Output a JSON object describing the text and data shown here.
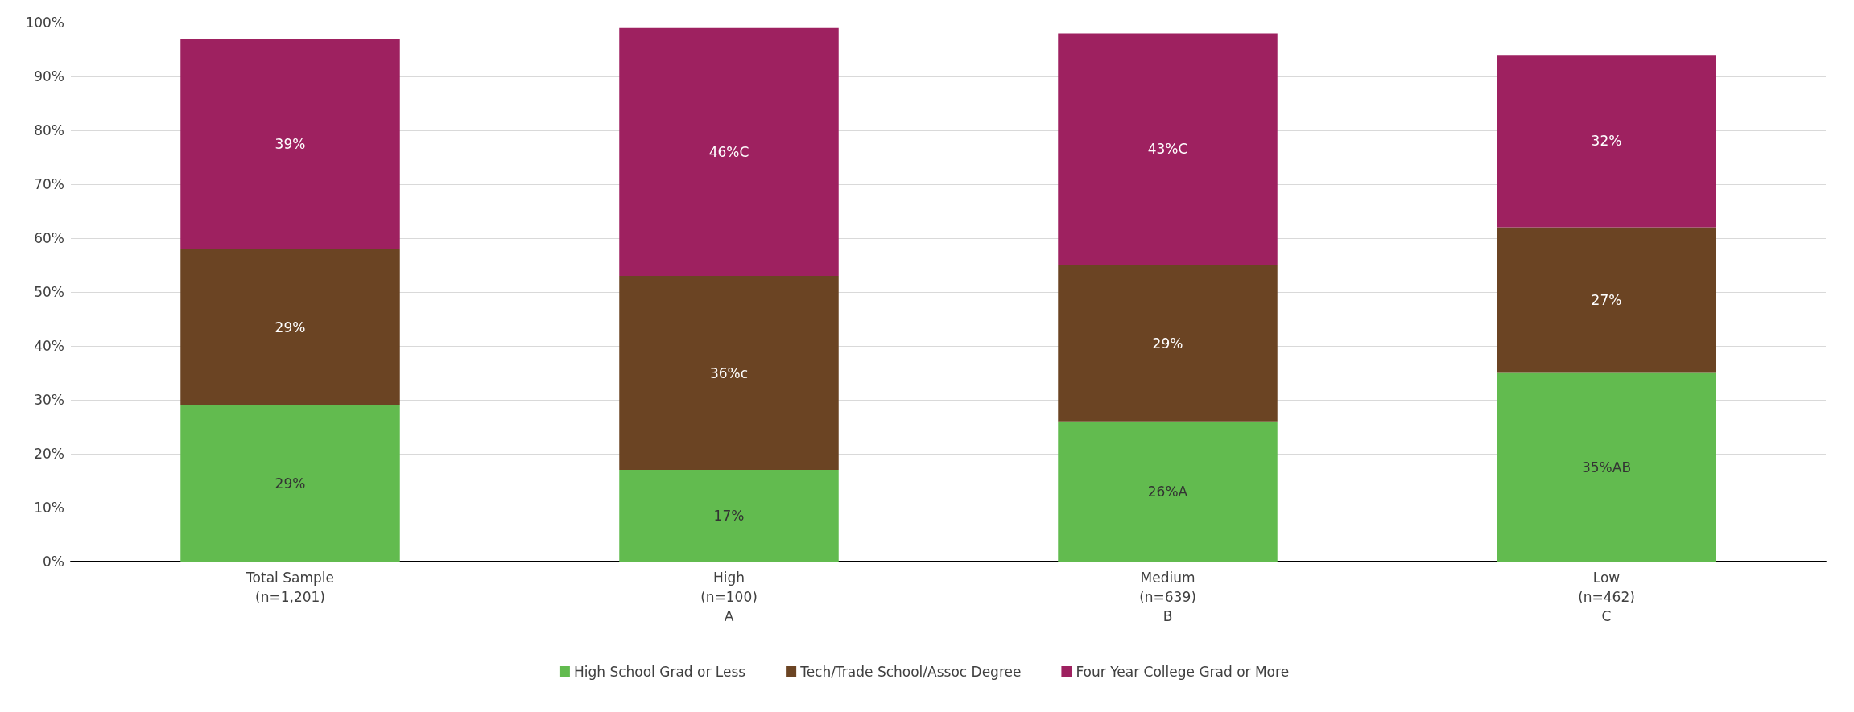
{
  "chart_data": {
    "type": "bar",
    "stacked": true,
    "categories": [
      "Total Sample\n(n=1,201)",
      "High\n(n=100)\nA",
      "Medium\n(n=639)\nB",
      "Low\n(n=462)\nC"
    ],
    "series": [
      {
        "name": "High School Grad or Less",
        "color": "#62bb4f",
        "values": [
          29,
          17,
          26,
          35
        ],
        "value_labels": [
          "29%",
          "17%",
          "26%A",
          "35%AB"
        ]
      },
      {
        "name": "Tech/Trade School/Assoc Degree",
        "color": "#6b4423",
        "values": [
          29,
          36,
          29,
          27
        ],
        "value_labels": [
          "29%",
          "36%c",
          "29%",
          "27%"
        ]
      },
      {
        "name": "Four Year College Grad or More",
        "color": "#9e2160",
        "values": [
          39,
          46,
          43,
          32
        ],
        "value_labels": [
          "39%",
          "46%C",
          "43%C",
          "32%"
        ]
      }
    ],
    "ylim": [
      0,
      100
    ],
    "yticks": [
      {
        "value": 0,
        "label": "0%"
      },
      {
        "value": 10,
        "label": "10%"
      },
      {
        "value": 20,
        "label": "20%"
      },
      {
        "value": 30,
        "label": "30%"
      },
      {
        "value": 40,
        "label": "40%"
      },
      {
        "value": 50,
        "label": "50%"
      },
      {
        "value": 60,
        "label": "60%"
      },
      {
        "value": 70,
        "label": "70%"
      },
      {
        "value": 80,
        "label": "80%"
      },
      {
        "value": 90,
        "label": "90%"
      },
      {
        "value": 100,
        "label": "100%"
      }
    ],
    "grid": "y",
    "legend": "bottom"
  }
}
